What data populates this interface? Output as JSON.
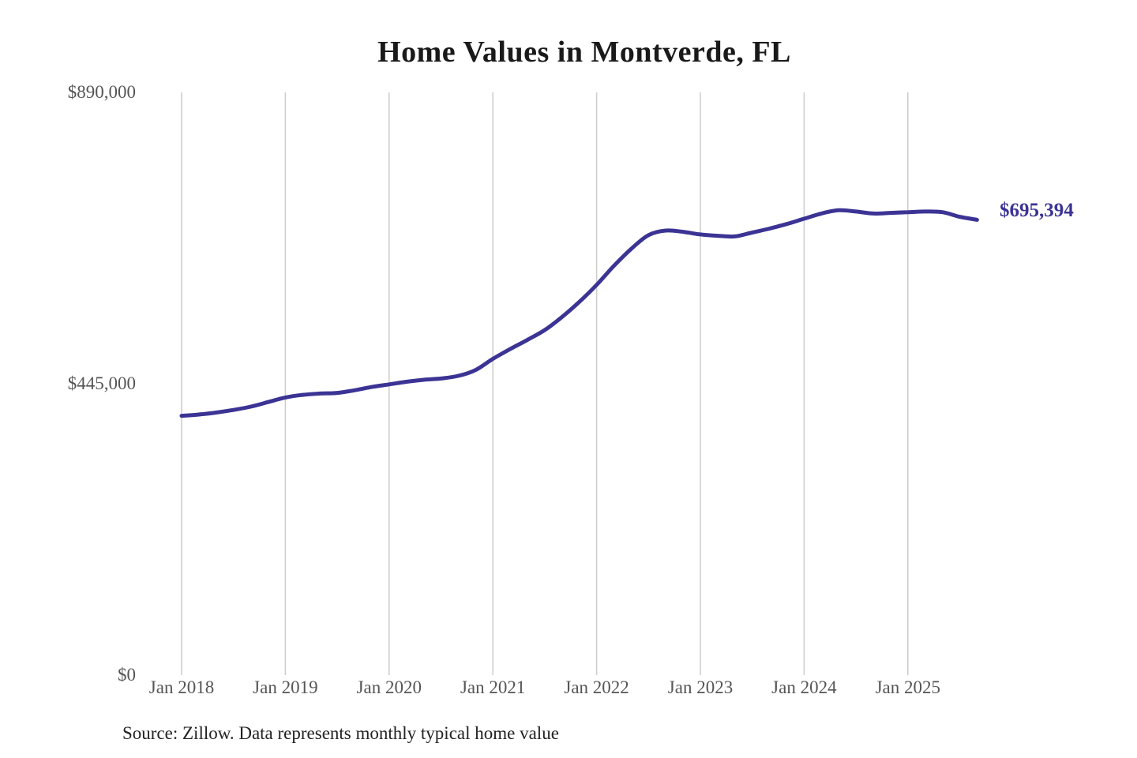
{
  "title": "Home Values in Montverde, FL",
  "end_label": "$695,394",
  "source_note": "Source: Zillow. Data represents monthly typical home value",
  "colors": {
    "line": "#3b3494",
    "grid": "#cccccc",
    "title_text": "#1a1a1a",
    "axis_text": "#555555",
    "source_text": "#222222",
    "background": "#ffffff"
  },
  "chart_data": {
    "type": "line",
    "title": "Home Values in Montverde, FL",
    "series_name": "Monthly typical home value",
    "legend": "none",
    "grid": "vertical-only",
    "xlabel": "",
    "ylabel": "",
    "ylim": [
      0,
      890000
    ],
    "y_tick_labels": [
      "$0",
      "$445,000",
      "$890,000"
    ],
    "y_tick_values": [
      0,
      445000,
      890000
    ],
    "x_tick_labels": [
      "Jan 2018",
      "Jan 2019",
      "Jan 2020",
      "Jan 2021",
      "Jan 2022",
      "Jan 2023",
      "Jan 2024",
      "Jan 2025"
    ],
    "x_tick_months": [
      0,
      12,
      24,
      36,
      48,
      60,
      72,
      84
    ],
    "last_value": 695394,
    "last_value_label": "$695,394",
    "points": [
      {
        "month": "2018-01",
        "m": 0,
        "value": 396000
      },
      {
        "month": "2018-03",
        "m": 2,
        "value": 398000
      },
      {
        "month": "2018-05",
        "m": 4,
        "value": 401000
      },
      {
        "month": "2018-07",
        "m": 6,
        "value": 405000
      },
      {
        "month": "2018-09",
        "m": 8,
        "value": 410000
      },
      {
        "month": "2018-11",
        "m": 10,
        "value": 417000
      },
      {
        "month": "2019-01",
        "m": 12,
        "value": 424000
      },
      {
        "month": "2019-03",
        "m": 14,
        "value": 428000
      },
      {
        "month": "2019-05",
        "m": 16,
        "value": 430000
      },
      {
        "month": "2019-07",
        "m": 18,
        "value": 431000
      },
      {
        "month": "2019-09",
        "m": 20,
        "value": 435000
      },
      {
        "month": "2019-11",
        "m": 22,
        "value": 440000
      },
      {
        "month": "2020-01",
        "m": 24,
        "value": 444000
      },
      {
        "month": "2020-03",
        "m": 26,
        "value": 448000
      },
      {
        "month": "2020-05",
        "m": 28,
        "value": 451000
      },
      {
        "month": "2020-07",
        "m": 30,
        "value": 453000
      },
      {
        "month": "2020-09",
        "m": 32,
        "value": 457000
      },
      {
        "month": "2020-11",
        "m": 34,
        "value": 466000
      },
      {
        "month": "2021-01",
        "m": 36,
        "value": 483000
      },
      {
        "month": "2021-03",
        "m": 38,
        "value": 498000
      },
      {
        "month": "2021-05",
        "m": 40,
        "value": 512000
      },
      {
        "month": "2021-07",
        "m": 42,
        "value": 527000
      },
      {
        "month": "2021-09",
        "m": 44,
        "value": 547000
      },
      {
        "month": "2021-11",
        "m": 46,
        "value": 570000
      },
      {
        "month": "2022-01",
        "m": 48,
        "value": 596000
      },
      {
        "month": "2022-03",
        "m": 50,
        "value": 625000
      },
      {
        "month": "2022-05",
        "m": 52,
        "value": 651000
      },
      {
        "month": "2022-07",
        "m": 54,
        "value": 672000
      },
      {
        "month": "2022-09",
        "m": 56,
        "value": 679000
      },
      {
        "month": "2022-11",
        "m": 58,
        "value": 677000
      },
      {
        "month": "2023-01",
        "m": 60,
        "value": 673000
      },
      {
        "month": "2023-03",
        "m": 62,
        "value": 671000
      },
      {
        "month": "2023-05",
        "m": 64,
        "value": 670000
      },
      {
        "month": "2023-07",
        "m": 66,
        "value": 676000
      },
      {
        "month": "2023-09",
        "m": 68,
        "value": 682000
      },
      {
        "month": "2023-11",
        "m": 70,
        "value": 689000
      },
      {
        "month": "2024-01",
        "m": 72,
        "value": 697000
      },
      {
        "month": "2024-03",
        "m": 74,
        "value": 705000
      },
      {
        "month": "2024-05",
        "m": 76,
        "value": 710000
      },
      {
        "month": "2024-07",
        "m": 78,
        "value": 708000
      },
      {
        "month": "2024-09",
        "m": 80,
        "value": 705000
      },
      {
        "month": "2024-11",
        "m": 82,
        "value": 706000
      },
      {
        "month": "2025-01",
        "m": 84,
        "value": 707000
      },
      {
        "month": "2025-03",
        "m": 86,
        "value": 708000
      },
      {
        "month": "2025-05",
        "m": 88,
        "value": 707000
      },
      {
        "month": "2025-07",
        "m": 90,
        "value": 700000
      },
      {
        "month": "2025-09",
        "m": 92,
        "value": 695394
      }
    ]
  }
}
